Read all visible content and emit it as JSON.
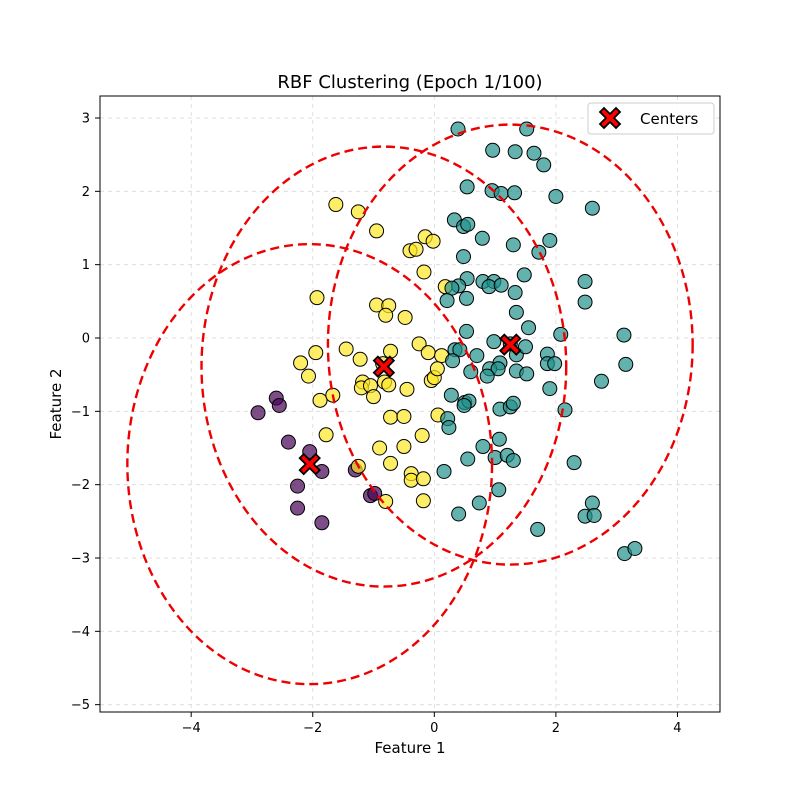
{
  "chart_data": {
    "type": "scatter",
    "title": "RBF Clustering (Epoch 1/100)",
    "xlabel": "Feature 1",
    "ylabel": "Feature 2",
    "xlim": [
      -5.5,
      4.7
    ],
    "ylim": [
      -5.1,
      3.3
    ],
    "xticks": [
      -4,
      -2,
      0,
      2,
      4
    ],
    "yticks": [
      -5,
      -4,
      -3,
      -2,
      -1,
      0,
      1,
      2,
      3
    ],
    "grid": true,
    "legend": {
      "position": "top-right",
      "entries": [
        "Centers"
      ]
    },
    "colors": {
      "cluster_purple": "#440154",
      "cluster_teal": "#21918c",
      "cluster_yellow": "#fde725",
      "center": "#ff0000",
      "circle": "#ee0000",
      "grid": "#d9d9d9"
    },
    "series": [
      {
        "cluster": "purple",
        "points": [
          [
            -2.9,
            -1.02
          ],
          [
            -2.6,
            -0.82
          ],
          [
            -2.55,
            -0.92
          ],
          [
            -2.4,
            -1.42
          ],
          [
            -2.25,
            -2.02
          ],
          [
            -2.25,
            -2.32
          ],
          [
            -2.05,
            -1.55
          ],
          [
            -1.85,
            -1.82
          ],
          [
            -1.85,
            -2.52
          ],
          [
            -1.3,
            -1.8
          ],
          [
            -1.05,
            -2.15
          ],
          [
            -0.98,
            -2.12
          ]
        ]
      },
      {
        "cluster": "yellow",
        "points": [
          [
            -1.62,
            1.82
          ],
          [
            -1.25,
            1.72
          ],
          [
            -0.95,
            1.46
          ],
          [
            -1.93,
            0.55
          ],
          [
            -0.95,
            0.45
          ],
          [
            -0.75,
            0.44
          ],
          [
            -0.8,
            0.31
          ],
          [
            -0.48,
            0.28
          ],
          [
            -0.4,
            1.19
          ],
          [
            -0.3,
            1.21
          ],
          [
            -0.15,
            1.38
          ],
          [
            -0.02,
            1.32
          ],
          [
            -0.17,
            0.9
          ],
          [
            0.18,
            0.7
          ],
          [
            -0.25,
            -0.08
          ],
          [
            -0.1,
            -0.2
          ],
          [
            0.12,
            -0.24
          ],
          [
            -0.72,
            -0.18
          ],
          [
            -0.85,
            -0.35
          ],
          [
            -1.22,
            -0.29
          ],
          [
            -1.45,
            -0.15
          ],
          [
            -1.95,
            -0.2
          ],
          [
            -2.2,
            -0.34
          ],
          [
            -2.07,
            -0.52
          ],
          [
            -1.18,
            -0.6
          ],
          [
            -1.2,
            -0.68
          ],
          [
            -1.05,
            -0.65
          ],
          [
            -0.82,
            -0.6
          ],
          [
            -0.75,
            -0.64
          ],
          [
            -1.0,
            -0.8
          ],
          [
            -0.45,
            -0.7
          ],
          [
            -0.05,
            -0.58
          ],
          [
            0.0,
            -0.54
          ],
          [
            0.05,
            -0.42
          ],
          [
            -1.88,
            -0.85
          ],
          [
            -1.67,
            -0.78
          ],
          [
            -0.72,
            -1.08
          ],
          [
            -0.5,
            -1.07
          ],
          [
            -0.2,
            -1.33
          ],
          [
            0.06,
            -1.05
          ],
          [
            -1.78,
            -1.32
          ],
          [
            -0.9,
            -1.5
          ],
          [
            -0.5,
            -1.48
          ],
          [
            -0.72,
            -1.71
          ],
          [
            -1.25,
            -1.75
          ],
          [
            -0.38,
            -1.85
          ],
          [
            -0.38,
            -1.94
          ],
          [
            -0.18,
            -1.92
          ],
          [
            -0.8,
            -2.23
          ],
          [
            -0.18,
            -2.22
          ]
        ]
      },
      {
        "cluster": "teal",
        "points": [
          [
            0.39,
            2.85
          ],
          [
            1.52,
            2.85
          ],
          [
            0.96,
            2.56
          ],
          [
            1.33,
            2.54
          ],
          [
            1.64,
            2.52
          ],
          [
            1.8,
            2.36
          ],
          [
            0.54,
            2.06
          ],
          [
            0.95,
            2.01
          ],
          [
            1.1,
            1.97
          ],
          [
            1.32,
            1.98
          ],
          [
            2.0,
            1.93
          ],
          [
            2.6,
            1.77
          ],
          [
            0.33,
            1.61
          ],
          [
            0.48,
            1.52
          ],
          [
            0.55,
            1.55
          ],
          [
            0.79,
            1.36
          ],
          [
            1.3,
            1.27
          ],
          [
            1.9,
            1.33
          ],
          [
            1.72,
            1.17
          ],
          [
            0.48,
            1.11
          ],
          [
            0.54,
            0.81
          ],
          [
            1.48,
            0.86
          ],
          [
            0.4,
            0.71
          ],
          [
            0.29,
            0.68
          ],
          [
            0.8,
            0.77
          ],
          [
            0.98,
            0.77
          ],
          [
            0.9,
            0.7
          ],
          [
            1.1,
            0.72
          ],
          [
            2.48,
            0.77
          ],
          [
            1.33,
            0.62
          ],
          [
            0.21,
            0.51
          ],
          [
            0.53,
            0.54
          ],
          [
            2.48,
            0.49
          ],
          [
            1.35,
            0.35
          ],
          [
            0.53,
            0.09
          ],
          [
            1.55,
            0.14
          ],
          [
            2.08,
            0.05
          ],
          [
            3.12,
            0.04
          ],
          [
            0.34,
            -0.16
          ],
          [
            0.42,
            -0.16
          ],
          [
            0.98,
            -0.05
          ],
          [
            1.25,
            -0.08
          ],
          [
            1.35,
            -0.23
          ],
          [
            1.5,
            -0.12
          ],
          [
            0.7,
            -0.24
          ],
          [
            1.86,
            -0.22
          ],
          [
            0.3,
            -0.31
          ],
          [
            1.08,
            -0.34
          ],
          [
            1.86,
            -0.35
          ],
          [
            1.98,
            -0.35
          ],
          [
            3.15,
            -0.36
          ],
          [
            0.6,
            -0.46
          ],
          [
            0.91,
            -0.42
          ],
          [
            1.05,
            -0.42
          ],
          [
            1.35,
            -0.45
          ],
          [
            1.52,
            -0.49
          ],
          [
            0.87,
            -0.52
          ],
          [
            2.75,
            -0.59
          ],
          [
            1.9,
            -0.69
          ],
          [
            0.28,
            -0.78
          ],
          [
            0.5,
            -0.88
          ],
          [
            0.57,
            -0.86
          ],
          [
            0.49,
            -0.92
          ],
          [
            1.08,
            -0.97
          ],
          [
            1.25,
            -0.94
          ],
          [
            1.3,
            -0.89
          ],
          [
            2.15,
            -0.98
          ],
          [
            0.22,
            -1.1
          ],
          [
            0.24,
            -1.22
          ],
          [
            0.8,
            -1.48
          ],
          [
            1.07,
            -1.38
          ],
          [
            1.0,
            -1.63
          ],
          [
            1.2,
            -1.6
          ],
          [
            1.3,
            -1.67
          ],
          [
            0.55,
            -1.65
          ],
          [
            0.16,
            -1.82
          ],
          [
            2.3,
            -1.7
          ],
          [
            1.06,
            -2.07
          ],
          [
            0.74,
            -2.25
          ],
          [
            0.4,
            -2.4
          ],
          [
            1.7,
            -2.61
          ],
          [
            2.6,
            -2.25
          ],
          [
            2.48,
            -2.43
          ],
          [
            2.63,
            -2.42
          ],
          [
            3.13,
            -2.94
          ],
          [
            3.3,
            -2.87
          ]
        ]
      }
    ],
    "centers": [
      {
        "x": -2.05,
        "y": -1.72,
        "radius": 3.0
      },
      {
        "x": -0.83,
        "y": -0.39,
        "radius": 3.0
      },
      {
        "x": 1.25,
        "y": -0.09,
        "radius": 3.0
      }
    ]
  }
}
